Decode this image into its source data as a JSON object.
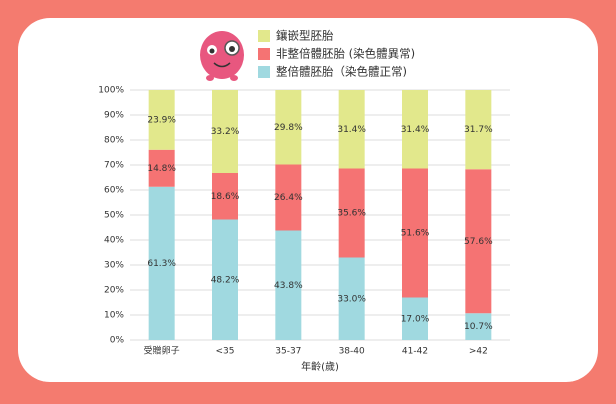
{
  "chart_data": {
    "type": "stacked-bar",
    "categories": [
      "受贈卵子",
      "<35",
      "35-37",
      "38-40",
      "41-42",
      ">42"
    ],
    "series": [
      {
        "name": "鑲嵌型胚胎",
        "color": "#e2e88c",
        "values": [
          23.9,
          33.2,
          29.8,
          31.4,
          31.4,
          31.7
        ],
        "value_labels": [
          "23.9%",
          "33.2%",
          "29.8%",
          "31.4%",
          "31.4%",
          "31.7%"
        ]
      },
      {
        "name": "非整倍體胚胎 (染色體異常)",
        "color": "#f57373",
        "values": [
          14.8,
          18.6,
          26.4,
          35.6,
          51.6,
          57.6
        ],
        "value_labels": [
          "14.8%",
          "18.6%",
          "26.4%",
          "35.6%",
          "51.6%",
          "57.6%"
        ]
      },
      {
        "name": "整倍體胚胎（染色體正常)",
        "color": "#a0d9e0",
        "values": [
          61.3,
          48.2,
          43.8,
          33.0,
          17.0,
          10.7
        ],
        "value_labels": [
          "61.3%",
          "48.2%",
          "43.8%",
          "33.0%",
          "17.0%",
          "10.7%"
        ]
      }
    ],
    "x_label": "年齡(歲)",
    "ylim": [
      0,
      100
    ],
    "yticks": [
      {
        "value": 0,
        "label": "0%"
      },
      {
        "value": 10,
        "label": "10%"
      },
      {
        "value": 20,
        "label": "20%"
      },
      {
        "value": 30,
        "label": "30%"
      },
      {
        "value": 40,
        "label": "40%"
      },
      {
        "value": 50,
        "label": "50%"
      },
      {
        "value": 60,
        "label": "60%"
      },
      {
        "value": 70,
        "label": "70%"
      },
      {
        "value": 80,
        "label": "80%"
      },
      {
        "value": 90,
        "label": "90%"
      },
      {
        "value": 100,
        "label": "100%"
      }
    ],
    "grid": true
  }
}
